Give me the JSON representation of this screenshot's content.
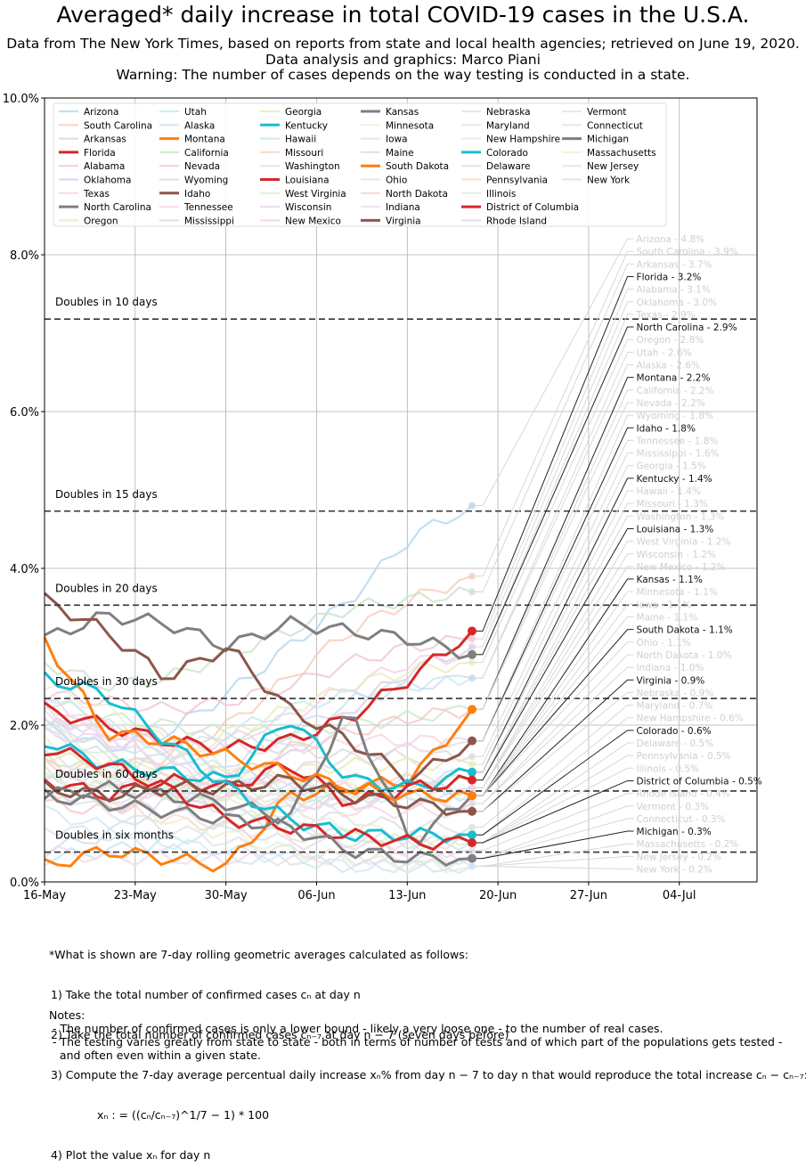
{
  "header": {
    "title": "Averaged* daily increase in total COVID-19 cases in the U.S.A.",
    "subtitle1": "Data from The New York Times, based on reports from state and local health agencies; retrieved on June 19, 2020.",
    "subtitle2": "Data analysis and graphics: Marco Piani",
    "subtitle3": "Warning: The number of cases depends on the way testing is conducted in a state."
  },
  "chart_data": {
    "type": "line",
    "title": "Averaged* daily increase in total COVID-19 cases in the U.S.A.",
    "xlabel": "",
    "ylabel": "",
    "x_range_days": [
      0,
      55
    ],
    "x_ticks": [
      {
        "day": 0,
        "label": "16-May"
      },
      {
        "day": 7,
        "label": "23-May"
      },
      {
        "day": 14,
        "label": "30-May"
      },
      {
        "day": 21,
        "label": "06-Jun"
      },
      {
        "day": 28,
        "label": "13-Jun"
      },
      {
        "day": 35,
        "label": "20-Jun"
      },
      {
        "day": 42,
        "label": "27-Jun"
      },
      {
        "day": 49,
        "label": "04-Jul"
      }
    ],
    "ylim": [
      0,
      10
    ],
    "y_ticks": [
      {
        "value": 0,
        "label": "0.0%"
      },
      {
        "value": 2,
        "label": "2.0%"
      },
      {
        "value": 4,
        "label": "4.0%"
      },
      {
        "value": 6,
        "label": "6.0%"
      },
      {
        "value": 8,
        "label": "8.0%"
      },
      {
        "value": 10,
        "label": "10.0%"
      }
    ],
    "grid": true,
    "legend_position": "top",
    "doubling_lines": [
      {
        "label": "Doubles in 10 days",
        "value": 7.18
      },
      {
        "label": "Doubles in 15 days",
        "value": 4.73
      },
      {
        "label": "Doubles in 20 days",
        "value": 3.53
      },
      {
        "label": "Doubles in 30 days",
        "value": 2.34
      },
      {
        "label": "Doubles in 60 days",
        "value": 1.16
      },
      {
        "label": "Doubles in six months",
        "value": 0.38
      }
    ],
    "last_day": 33,
    "label_anchor_day": 45,
    "series": [
      {
        "name": "Arizona",
        "last": 4.8,
        "label": "Arizona - 4.8%",
        "color": "#aed4ec",
        "highlight": false,
        "key": [
          2.0,
          1.7,
          1.9,
          2.4,
          3.0,
          3.6,
          4.4,
          4.8
        ]
      },
      {
        "name": "South Carolina",
        "last": 3.9,
        "label": "South Carolina - 3.9%",
        "color": "#f6c9b6",
        "highlight": false,
        "key": [
          1.5,
          1.4,
          1.6,
          2.0,
          2.6,
          3.2,
          3.6,
          3.9
        ]
      },
      {
        "name": "Arkansas",
        "last": 3.7,
        "label": "Arkansas - 3.7%",
        "color": "#c6e2c6",
        "highlight": false,
        "key": [
          2.8,
          2.5,
          2.6,
          2.9,
          3.2,
          3.5,
          3.6,
          3.7
        ]
      },
      {
        "name": "Florida",
        "last": 3.2,
        "label": "Florida - 3.2%",
        "color": "#d62728",
        "highlight": true,
        "key": [
          2.2,
          2.0,
          1.8,
          1.7,
          1.8,
          2.1,
          2.6,
          3.2
        ]
      },
      {
        "name": "Alabama",
        "last": 3.1,
        "label": "Alabama - 3.1%",
        "color": "#f0c2cf",
        "highlight": false,
        "key": [
          2.4,
          2.3,
          2.2,
          2.3,
          2.5,
          2.8,
          3.0,
          3.1
        ]
      },
      {
        "name": "Oklahoma",
        "last": 3.0,
        "label": "Oklahoma - 3.0%",
        "color": "#dcc8e6",
        "highlight": false,
        "key": [
          1.2,
          1.0,
          0.9,
          1.1,
          1.6,
          2.2,
          2.7,
          3.0
        ]
      },
      {
        "name": "Texas",
        "last": 2.9,
        "label": "Texas - 2.9%",
        "color": "#f6cce8",
        "highlight": false,
        "key": [
          1.9,
          1.8,
          1.7,
          1.8,
          2.1,
          2.5,
          2.8,
          2.9
        ]
      },
      {
        "name": "North Carolina",
        "last": 2.9,
        "label": "North Carolina - 2.9%",
        "color": "#7f7f7f",
        "highlight": true,
        "key": [
          3.1,
          3.4,
          3.3,
          3.0,
          3.3,
          3.2,
          3.1,
          2.9
        ]
      },
      {
        "name": "Oregon",
        "last": 2.8,
        "label": "Oregon - 2.8%",
        "color": "#eaeab8",
        "highlight": false,
        "key": [
          1.6,
          1.4,
          1.5,
          1.9,
          2.2,
          2.5,
          2.7,
          2.8
        ]
      },
      {
        "name": "Utah",
        "last": 2.6,
        "label": "Utah - 2.6%",
        "color": "#c4e8ee",
        "highlight": false,
        "key": [
          1.3,
          1.4,
          1.6,
          1.9,
          2.2,
          2.4,
          2.5,
          2.6
        ]
      },
      {
        "name": "Alaska",
        "last": 2.6,
        "label": "Alaska - 2.6%",
        "color": "#c9dcee",
        "highlight": false,
        "key": [
          0.4,
          0.6,
          1.0,
          1.5,
          1.9,
          2.3,
          2.5,
          2.6
        ]
      },
      {
        "name": "Montana",
        "last": 2.2,
        "label": "Montana - 2.2%",
        "color": "#ff7f0e",
        "highlight": true,
        "key": [
          0.2,
          0.4,
          0.3,
          0.2,
          1.1,
          1.2,
          1.3,
          2.2
        ]
      },
      {
        "name": "California",
        "last": 2.2,
        "label": "California - 2.2%",
        "color": "#c8e6c8",
        "highlight": false,
        "key": [
          2.3,
          2.1,
          2.0,
          1.9,
          1.9,
          2.0,
          2.1,
          2.2
        ]
      },
      {
        "name": "Nevada",
        "last": 2.2,
        "label": "Nevada - 2.2%",
        "color": "#f4c4c4",
        "highlight": false,
        "key": [
          1.0,
          0.9,
          1.1,
          1.3,
          1.7,
          1.9,
          2.1,
          2.2
        ]
      },
      {
        "name": "Wyoming",
        "last": 1.8,
        "label": "Wyoming - 1.8%",
        "color": "#e2d6ea",
        "highlight": false,
        "key": [
          1.4,
          1.2,
          1.1,
          1.2,
          1.4,
          1.6,
          1.7,
          1.8
        ]
      },
      {
        "name": "Idaho",
        "last": 1.8,
        "label": "Idaho - 1.8%",
        "color": "#8c564b",
        "highlight": true,
        "key": [
          3.6,
          3.2,
          2.6,
          3.0,
          2.2,
          1.8,
          1.3,
          1.8
        ]
      },
      {
        "name": "Tennessee",
        "last": 1.8,
        "label": "Tennessee - 1.8%",
        "color": "#f6d2e6",
        "highlight": false,
        "key": [
          2.1,
          1.9,
          1.8,
          1.7,
          1.7,
          1.8,
          1.8,
          1.8
        ]
      },
      {
        "name": "Mississippi",
        "last": 1.6,
        "label": "Mississippi - 1.6%",
        "color": "#d9d9d9",
        "highlight": false,
        "key": [
          2.0,
          2.0,
          1.9,
          1.8,
          1.7,
          1.6,
          1.6,
          1.6
        ]
      },
      {
        "name": "Georgia",
        "last": 1.5,
        "label": "Georgia - 1.5%",
        "color": "#eaeab2",
        "highlight": false,
        "key": [
          1.6,
          1.5,
          1.4,
          1.4,
          1.4,
          1.5,
          1.5,
          1.5
        ]
      },
      {
        "name": "Kentucky",
        "last": 1.4,
        "label": "Kentucky - 1.4%",
        "color": "#17becf",
        "highlight": true,
        "key": [
          1.8,
          1.5,
          1.4,
          1.3,
          2.1,
          1.3,
          1.2,
          1.4
        ]
      },
      {
        "name": "Hawaii",
        "last": 1.4,
        "label": "Hawaii - 1.4%",
        "color": "#bde4f0",
        "highlight": false,
        "key": [
          0.3,
          0.4,
          0.5,
          0.7,
          0.9,
          1.1,
          1.3,
          1.4
        ]
      },
      {
        "name": "Missouri",
        "last": 1.3,
        "label": "Missouri - 1.3%",
        "color": "#f5d3c0",
        "highlight": false,
        "key": [
          1.7,
          1.5,
          1.3,
          1.2,
          1.2,
          1.3,
          1.3,
          1.3
        ]
      },
      {
        "name": "Washington",
        "last": 1.3,
        "label": "Washington - 1.3%",
        "color": "#d6e8d0",
        "highlight": false,
        "key": [
          1.6,
          1.4,
          1.2,
          1.1,
          1.1,
          1.2,
          1.3,
          1.3
        ]
      },
      {
        "name": "Louisiana",
        "last": 1.3,
        "label": "Louisiana - 1.3%",
        "color": "#d62728",
        "highlight": true,
        "key": [
          1.3,
          1.1,
          1.3,
          1.2,
          1.5,
          1.0,
          1.2,
          1.3
        ]
      },
      {
        "name": "West Virginia",
        "last": 1.2,
        "label": "West Virginia - 1.2%",
        "color": "#d8ecd0",
        "highlight": false,
        "key": [
          1.3,
          1.2,
          1.1,
          1.1,
          1.1,
          1.1,
          1.2,
          1.2
        ]
      },
      {
        "name": "Wisconsin",
        "last": 1.2,
        "label": "Wisconsin - 1.2%",
        "color": "#e6d6ec",
        "highlight": false,
        "key": [
          2.2,
          1.8,
          1.5,
          1.3,
          1.2,
          1.2,
          1.2,
          1.2
        ]
      },
      {
        "name": "New Mexico",
        "last": 1.2,
        "label": "New Mexico - 1.2%",
        "color": "#f2cfe0",
        "highlight": false,
        "key": [
          2.3,
          2.0,
          1.7,
          1.4,
          1.3,
          1.2,
          1.2,
          1.2
        ]
      },
      {
        "name": "Kansas",
        "last": 1.1,
        "label": "Kansas - 1.1%",
        "color": "#7f7f7f",
        "highlight": true,
        "key": [
          1.1,
          1.2,
          1.1,
          1.0,
          0.8,
          2.2,
          0.5,
          1.1
        ]
      },
      {
        "name": "Minnesota",
        "last": 1.1,
        "label": "Minnesota - 1.1%",
        "color": "#ececd2",
        "highlight": false,
        "key": [
          2.5,
          2.2,
          1.8,
          1.5,
          1.3,
          1.2,
          1.1,
          1.1
        ]
      },
      {
        "name": "Iowa",
        "last": 1.1,
        "label": "Iowa - 1.1%",
        "color": "#cce8f0",
        "highlight": false,
        "key": [
          2.4,
          2.0,
          1.7,
          1.4,
          1.2,
          1.1,
          1.1,
          1.1
        ]
      },
      {
        "name": "Maine",
        "last": 1.1,
        "label": "Maine - 1.1%",
        "color": "#cddff0",
        "highlight": false,
        "key": [
          2.0,
          1.8,
          1.6,
          1.4,
          1.2,
          1.1,
          1.1,
          1.1
        ]
      },
      {
        "name": "South Dakota",
        "last": 1.1,
        "label": "South Dakota - 1.1%",
        "color": "#ff7f0e",
        "highlight": true,
        "key": [
          3.1,
          1.9,
          1.8,
          1.6,
          1.4,
          1.2,
          1.1,
          1.1
        ]
      },
      {
        "name": "Ohio",
        "last": 1.1,
        "label": "Ohio - 1.1%",
        "color": "#d4ecd0",
        "highlight": false,
        "key": [
          1.4,
          1.3,
          1.2,
          1.1,
          1.1,
          1.1,
          1.1,
          1.1
        ]
      },
      {
        "name": "North Dakota",
        "last": 1.0,
        "label": "North Dakota - 1.0%",
        "color": "#f4cccc",
        "highlight": false,
        "key": [
          1.5,
          1.3,
          1.2,
          1.1,
          1.0,
          1.0,
          1.0,
          1.0
        ]
      },
      {
        "name": "Indiana",
        "last": 1.0,
        "label": "Indiana - 1.0%",
        "color": "#e6dcee",
        "highlight": false,
        "key": [
          1.6,
          1.4,
          1.2,
          1.1,
          1.0,
          1.0,
          1.0,
          1.0
        ]
      },
      {
        "name": "Virginia",
        "last": 0.9,
        "label": "Virginia - 0.9%",
        "color": "#8c564b",
        "highlight": true,
        "key": [
          1.2,
          1.1,
          1.2,
          1.2,
          1.3,
          1.1,
          1.0,
          0.9
        ]
      },
      {
        "name": "Nebraska",
        "last": 0.9,
        "label": "Nebraska - 0.9%",
        "color": "#f2d6e6",
        "highlight": false,
        "key": [
          2.3,
          1.9,
          1.5,
          1.2,
          1.0,
          0.9,
          0.9,
          0.9
        ]
      },
      {
        "name": "Maryland",
        "last": 0.7,
        "label": "Maryland - 0.7%",
        "color": "#dddddd",
        "highlight": false,
        "key": [
          2.0,
          1.7,
          1.4,
          1.1,
          0.9,
          0.8,
          0.7,
          0.7
        ]
      },
      {
        "name": "New Hampshire",
        "last": 0.6,
        "label": "New Hampshire - 0.6%",
        "color": "#ececd8",
        "highlight": false,
        "key": [
          1.8,
          1.5,
          1.2,
          1.0,
          0.8,
          0.7,
          0.6,
          0.6
        ]
      },
      {
        "name": "Colorado",
        "last": 0.6,
        "label": "Colorado - 0.6%",
        "color": "#17becf",
        "highlight": true,
        "key": [
          2.6,
          2.4,
          1.8,
          1.2,
          0.8,
          0.6,
          0.6,
          0.6
        ]
      },
      {
        "name": "Delaware",
        "last": 0.5,
        "label": "Delaware - 0.5%",
        "color": "#cfe0f0",
        "highlight": false,
        "key": [
          1.9,
          1.6,
          1.2,
          0.9,
          0.7,
          0.6,
          0.5,
          0.5
        ]
      },
      {
        "name": "Pennsylvania",
        "last": 0.5,
        "label": "Pennsylvania - 0.5%",
        "color": "#f5d8c8",
        "highlight": false,
        "key": [
          1.2,
          1.0,
          0.8,
          0.7,
          0.6,
          0.5,
          0.5,
          0.5
        ]
      },
      {
        "name": "Illinois",
        "last": 0.5,
        "label": "Illinois - 0.5%",
        "color": "#d8ecd4",
        "highlight": false,
        "key": [
          2.0,
          1.6,
          1.2,
          0.9,
          0.7,
          0.6,
          0.5,
          0.5
        ]
      },
      {
        "name": "District of Columbia",
        "last": 0.5,
        "label": "District of Columbia - 0.5%",
        "color": "#d62728",
        "highlight": true,
        "key": [
          1.7,
          1.5,
          1.2,
          0.8,
          0.7,
          0.6,
          0.5,
          0.5
        ]
      },
      {
        "name": "Rhode Island",
        "last": 0.4,
        "label": "Rhode Island - 0.4%",
        "color": "#e0d8ec",
        "highlight": false,
        "key": [
          1.4,
          1.1,
          0.9,
          0.7,
          0.5,
          0.5,
          0.4,
          0.4
        ]
      },
      {
        "name": "Vermont",
        "last": 0.3,
        "label": "Vermont - 0.3%",
        "color": "#f0d8e4",
        "highlight": false,
        "key": [
          0.4,
          0.3,
          0.3,
          0.3,
          0.3,
          0.3,
          0.3,
          0.3
        ]
      },
      {
        "name": "Connecticut",
        "last": 0.3,
        "label": "Connecticut - 0.3%",
        "color": "#e0e0e0",
        "highlight": false,
        "key": [
          1.2,
          0.9,
          0.7,
          0.5,
          0.4,
          0.3,
          0.3,
          0.3
        ]
      },
      {
        "name": "Michigan",
        "last": 0.3,
        "label": "Michigan - 0.3%",
        "color": "#7f7f7f",
        "highlight": true,
        "key": [
          1.1,
          1.0,
          0.9,
          0.8,
          0.7,
          0.4,
          0.3,
          0.3
        ]
      },
      {
        "name": "Massachusetts",
        "last": 0.2,
        "label": "Massachusetts - 0.2%",
        "color": "#ececd6",
        "highlight": false,
        "key": [
          1.4,
          1.1,
          0.8,
          0.6,
          0.4,
          0.3,
          0.2,
          0.2
        ]
      },
      {
        "name": "New Jersey",
        "last": 0.2,
        "label": "New Jersey - 0.2%",
        "color": "#cfe8f2",
        "highlight": false,
        "key": [
          0.9,
          0.7,
          0.5,
          0.4,
          0.3,
          0.2,
          0.2,
          0.2
        ]
      },
      {
        "name": "New York",
        "last": 0.2,
        "label": "New York - 0.2%",
        "color": "#d2e2f2",
        "highlight": false,
        "key": [
          0.7,
          0.6,
          0.4,
          0.3,
          0.3,
          0.2,
          0.2,
          0.2
        ]
      }
    ]
  },
  "footnote": {
    "line0": "*What is shown are 7-day rolling geometric averages calculated as follows:",
    "line1": "1) Take the total number of confirmed cases cₙ at day n",
    "line2": "2) Take the total number of confirmed cases cₙ₋₇ at day n − 7 (seven days before)",
    "line3": "3) Compute the 7-day average percentual daily increase xₙ% from day n − 7 to day n that would reproduce the total increase cₙ − cₙ₋₇:",
    "formula": "xₙ : = ((cₙ/cₙ₋₇)^1/7 − 1) * 100",
    "line4": "4) Plot the value xₙ for day n"
  },
  "notes": {
    "heading": "Notes:",
    "note1": " - The number of confirmed cases is only a lower bound - likely a very loose one - to the number of real cases.",
    "note2": " - The testing varies greatly from state to state - both in terms of number of tests and of which part of the populations gets tested -",
    "note3": "   and often even within a given state."
  }
}
